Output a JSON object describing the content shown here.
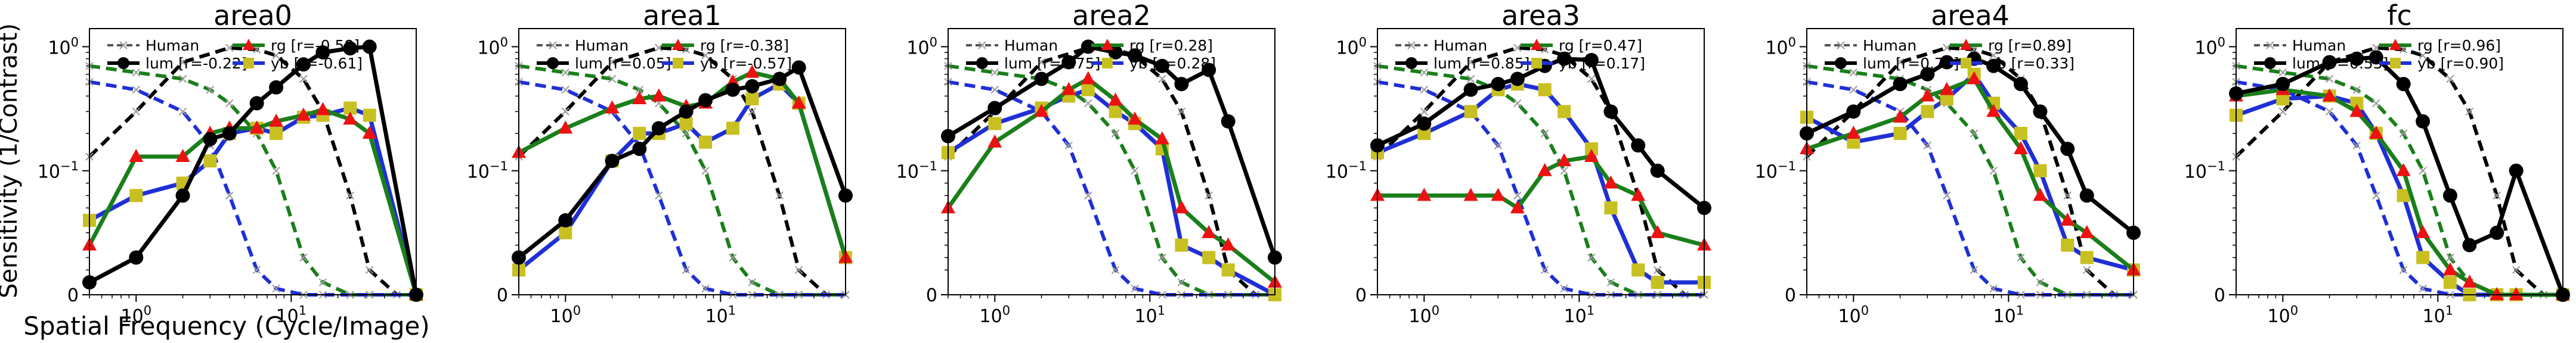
{
  "figure": {
    "ylabel": "Sensitivity (1/Contrast)",
    "xlabel": "Spatial Frequency (Cycle/Image)"
  },
  "legend_labels": {
    "human": "Human",
    "lum": "lum",
    "rg": "rg",
    "yb": "yb"
  },
  "colors": {
    "lum": "#000000",
    "rg": "#1a7f1a",
    "yb": "#1f2fd6",
    "human_lum": "#000000",
    "human_rg": "#1a7f1a",
    "human_yb": "#1f2fd6",
    "rg_marker": "#ee1111",
    "yb_marker": "#c8c020",
    "human_marker": "#999999"
  },
  "chart_data": [
    {
      "type": "line",
      "title": "area0",
      "x_scale": "log",
      "y_scale": "symlog",
      "x_tick_labels": [
        "10^0",
        "10^1"
      ],
      "y_tick_labels": [
        "0",
        "10^-1",
        "10^0"
      ],
      "legend": {
        "lum": "lum [r=-0.22]",
        "rg": "rg    [r=-0.58]",
        "yb": "yb    [r=-0.61]"
      },
      "x": [
        0.5,
        1,
        2,
        3,
        4,
        6,
        8,
        12,
        16,
        24,
        32,
        64
      ],
      "series": [
        {
          "name": "lum",
          "values": [
            0.01,
            0.03,
            0.08,
            0.18,
            0.2,
            0.35,
            0.47,
            0.72,
            0.9,
            0.97,
            1.0,
            0.0
          ]
        },
        {
          "name": "rg",
          "values": [
            0.04,
            0.13,
            0.13,
            0.2,
            0.22,
            0.22,
            0.25,
            0.28,
            0.31,
            0.26,
            0.2,
            0.0
          ]
        },
        {
          "name": "yb",
          "values": [
            0.06,
            0.08,
            0.09,
            0.12,
            0.2,
            0.22,
            0.2,
            0.27,
            0.28,
            0.32,
            0.28,
            0.0
          ]
        }
      ],
      "human": [
        {
          "name": "lum",
          "x": [
            0.5,
            1,
            2,
            4,
            6,
            8,
            12,
            16,
            24,
            32,
            48,
            64
          ],
          "values": [
            0.13,
            0.3,
            0.75,
            0.98,
            0.95,
            0.85,
            0.55,
            0.3,
            0.08,
            0.02,
            0.0,
            0.0
          ]
        },
        {
          "name": "rg",
          "x": [
            0.5,
            1,
            2,
            3,
            4,
            6,
            8,
            12,
            16,
            24,
            32,
            64
          ],
          "values": [
            0.7,
            0.62,
            0.55,
            0.45,
            0.35,
            0.2,
            0.1,
            0.03,
            0.01,
            0.0,
            0.0,
            0.0
          ]
        },
        {
          "name": "yb",
          "x": [
            0.5,
            1,
            2,
            3,
            4,
            6,
            8,
            12,
            16,
            24,
            32,
            64
          ],
          "values": [
            0.52,
            0.45,
            0.3,
            0.16,
            0.08,
            0.02,
            0.005,
            0.0,
            0.0,
            0.0,
            0.0,
            0.0
          ]
        }
      ]
    },
    {
      "type": "line",
      "title": "area1",
      "x_scale": "log",
      "y_scale": "symlog",
      "x_tick_labels": [
        "10^0",
        "10^1"
      ],
      "y_tick_labels": [
        "0",
        "10^-1",
        "10^0"
      ],
      "legend": {
        "lum": "lum [r=0.05]",
        "rg": "rg    [r=-0.38]",
        "yb": "yb    [r=-0.57]"
      },
      "x": [
        0.5,
        1,
        2,
        3,
        4,
        6,
        8,
        12,
        16,
        24,
        32,
        64
      ],
      "series": [
        {
          "name": "lum",
          "values": [
            0.03,
            0.06,
            0.12,
            0.15,
            0.22,
            0.3,
            0.37,
            0.45,
            0.48,
            0.55,
            0.68,
            0.08
          ]
        },
        {
          "name": "rg",
          "values": [
            0.14,
            0.22,
            0.32,
            0.38,
            0.4,
            0.33,
            0.35,
            0.52,
            0.62,
            0.55,
            0.35,
            0.03
          ]
        },
        {
          "name": "yb",
          "values": [
            0.02,
            0.05,
            0.12,
            0.2,
            0.2,
            0.24,
            0.17,
            0.22,
            0.38,
            0.5,
            0.35,
            0.03
          ]
        }
      ],
      "human": [
        {
          "name": "lum",
          "x": [
            0.5,
            1,
            2,
            4,
            6,
            8,
            12,
            16,
            24,
            32,
            48,
            64
          ],
          "values": [
            0.13,
            0.3,
            0.75,
            0.98,
            0.95,
            0.85,
            0.55,
            0.3,
            0.08,
            0.02,
            0.0,
            0.0
          ]
        },
        {
          "name": "rg",
          "x": [
            0.5,
            1,
            2,
            3,
            4,
            6,
            8,
            12,
            16,
            24,
            32,
            64
          ],
          "values": [
            0.7,
            0.62,
            0.55,
            0.45,
            0.35,
            0.2,
            0.1,
            0.03,
            0.01,
            0.0,
            0.0,
            0.0
          ]
        },
        {
          "name": "yb",
          "x": [
            0.5,
            1,
            2,
            3,
            4,
            6,
            8,
            12,
            16,
            24,
            32,
            64
          ],
          "values": [
            0.52,
            0.45,
            0.3,
            0.16,
            0.08,
            0.02,
            0.005,
            0.0,
            0.0,
            0.0,
            0.0,
            0.0
          ]
        }
      ]
    },
    {
      "type": "line",
      "title": "area2",
      "x_scale": "log",
      "y_scale": "symlog",
      "x_tick_labels": [
        "10^0",
        "10^1"
      ],
      "y_tick_labels": [
        "0",
        "10^-1",
        "10^0"
      ],
      "legend": {
        "lum": "lum [r=0.75]",
        "rg": "rg    [r=0.28]",
        "yb": "yb    [r=0.28]"
      },
      "x": [
        0.5,
        1,
        2,
        3,
        4,
        6,
        8,
        12,
        16,
        24,
        32,
        64
      ],
      "series": [
        {
          "name": "lum",
          "values": [
            0.19,
            0.32,
            0.55,
            0.75,
            1.0,
            0.9,
            0.85,
            0.7,
            0.5,
            0.65,
            0.25,
            0.03
          ]
        },
        {
          "name": "rg",
          "values": [
            0.07,
            0.17,
            0.3,
            0.45,
            0.55,
            0.37,
            0.26,
            0.18,
            0.07,
            0.05,
            0.04,
            0.01
          ]
        },
        {
          "name": "yb",
          "values": [
            0.14,
            0.24,
            0.32,
            0.4,
            0.45,
            0.3,
            0.24,
            0.15,
            0.04,
            0.03,
            0.02,
            0.0
          ]
        }
      ],
      "human": [
        {
          "name": "lum",
          "x": [
            0.5,
            1,
            2,
            4,
            6,
            8,
            12,
            16,
            24,
            32,
            48,
            64
          ],
          "values": [
            0.13,
            0.3,
            0.75,
            0.98,
            0.95,
            0.85,
            0.55,
            0.3,
            0.08,
            0.02,
            0.0,
            0.0
          ]
        },
        {
          "name": "rg",
          "x": [
            0.5,
            1,
            2,
            3,
            4,
            6,
            8,
            12,
            16,
            24,
            32,
            64
          ],
          "values": [
            0.7,
            0.62,
            0.55,
            0.45,
            0.35,
            0.2,
            0.1,
            0.03,
            0.01,
            0.0,
            0.0,
            0.0
          ]
        },
        {
          "name": "yb",
          "x": [
            0.5,
            1,
            2,
            3,
            4,
            6,
            8,
            12,
            16,
            24,
            32,
            64
          ],
          "values": [
            0.52,
            0.45,
            0.3,
            0.16,
            0.08,
            0.02,
            0.005,
            0.0,
            0.0,
            0.0,
            0.0,
            0.0
          ]
        }
      ]
    },
    {
      "type": "line",
      "title": "area3",
      "x_scale": "log",
      "y_scale": "symlog",
      "x_tick_labels": [
        "10^0",
        "10^1"
      ],
      "y_tick_labels": [
        "0",
        "10^-1",
        "10^0"
      ],
      "legend": {
        "lum": "lum [r=0.85]",
        "rg": "rg    [r=0.47]",
        "yb": "yb    [r=0.17]"
      },
      "x": [
        0.5,
        1,
        2,
        3,
        4,
        6,
        8,
        12,
        16,
        24,
        32,
        64
      ],
      "series": [
        {
          "name": "lum",
          "values": [
            0.16,
            0.24,
            0.45,
            0.5,
            0.55,
            0.7,
            0.8,
            0.78,
            0.3,
            0.16,
            0.1,
            0.07
          ]
        },
        {
          "name": "rg",
          "values": [
            0.08,
            0.08,
            0.08,
            0.08,
            0.07,
            0.1,
            0.12,
            0.13,
            0.09,
            0.08,
            0.05,
            0.04
          ]
        },
        {
          "name": "yb",
          "values": [
            0.14,
            0.2,
            0.3,
            0.45,
            0.5,
            0.45,
            0.3,
            0.15,
            0.07,
            0.02,
            0.01,
            0.01
          ]
        }
      ],
      "human": [
        {
          "name": "lum",
          "x": [
            0.5,
            1,
            2,
            4,
            6,
            8,
            12,
            16,
            24,
            32,
            48,
            64
          ],
          "values": [
            0.13,
            0.3,
            0.75,
            0.98,
            0.95,
            0.85,
            0.55,
            0.3,
            0.08,
            0.02,
            0.0,
            0.0
          ]
        },
        {
          "name": "rg",
          "x": [
            0.5,
            1,
            2,
            3,
            4,
            6,
            8,
            12,
            16,
            24,
            32,
            64
          ],
          "values": [
            0.7,
            0.62,
            0.55,
            0.45,
            0.35,
            0.2,
            0.1,
            0.03,
            0.01,
            0.0,
            0.0,
            0.0
          ]
        },
        {
          "name": "yb",
          "x": [
            0.5,
            1,
            2,
            3,
            4,
            6,
            8,
            12,
            16,
            24,
            32,
            64
          ],
          "values": [
            0.52,
            0.45,
            0.3,
            0.16,
            0.08,
            0.02,
            0.005,
            0.0,
            0.0,
            0.0,
            0.0,
            0.0
          ]
        }
      ]
    },
    {
      "type": "line",
      "title": "area4",
      "x_scale": "log",
      "y_scale": "symlog",
      "x_tick_labels": [
        "10^0",
        "10^1"
      ],
      "y_tick_labels": [
        "0",
        "10^-1",
        "10^0"
      ],
      "legend": {
        "lum": "lum [r=0.77]",
        "rg": "rg    [r=0.89]",
        "yb": "yb    [r=0.33]"
      },
      "x": [
        0.5,
        1,
        2,
        3,
        4,
        6,
        8,
        12,
        16,
        24,
        32,
        64
      ],
      "series": [
        {
          "name": "lum",
          "values": [
            0.2,
            0.3,
            0.5,
            0.6,
            0.75,
            0.8,
            0.7,
            0.5,
            0.3,
            0.15,
            0.08,
            0.05
          ]
        },
        {
          "name": "rg",
          "values": [
            0.15,
            0.2,
            0.27,
            0.4,
            0.45,
            0.55,
            0.3,
            0.15,
            0.08,
            0.06,
            0.05,
            0.02
          ]
        },
        {
          "name": "yb",
          "values": [
            0.27,
            0.17,
            0.2,
            0.3,
            0.38,
            0.6,
            0.35,
            0.2,
            0.1,
            0.04,
            0.03,
            0.02
          ]
        }
      ],
      "human": [
        {
          "name": "lum",
          "x": [
            0.5,
            1,
            2,
            4,
            6,
            8,
            12,
            16,
            24,
            32,
            48,
            64
          ],
          "values": [
            0.13,
            0.3,
            0.75,
            0.98,
            0.95,
            0.85,
            0.55,
            0.3,
            0.08,
            0.02,
            0.0,
            0.0
          ]
        },
        {
          "name": "rg",
          "x": [
            0.5,
            1,
            2,
            3,
            4,
            6,
            8,
            12,
            16,
            24,
            32,
            64
          ],
          "values": [
            0.7,
            0.62,
            0.55,
            0.45,
            0.35,
            0.2,
            0.1,
            0.03,
            0.01,
            0.0,
            0.0,
            0.0
          ]
        },
        {
          "name": "yb",
          "x": [
            0.5,
            1,
            2,
            3,
            4,
            6,
            8,
            12,
            16,
            24,
            32,
            64
          ],
          "values": [
            0.52,
            0.45,
            0.3,
            0.16,
            0.08,
            0.02,
            0.005,
            0.0,
            0.0,
            0.0,
            0.0,
            0.0
          ]
        }
      ]
    },
    {
      "type": "line",
      "title": "fc",
      "x_scale": "log",
      "y_scale": "symlog",
      "x_tick_labels": [
        "10^0",
        "10^1"
      ],
      "y_tick_labels": [
        "0",
        "10^-1",
        "10^0"
      ],
      "legend": {
        "lum": "lum [r=0.53]",
        "rg": "rg    [r=0.96]",
        "yb": "yb    [r=0.90]"
      },
      "x": [
        0.5,
        1,
        2,
        3,
        4,
        6,
        8,
        12,
        16,
        24,
        32,
        64
      ],
      "series": [
        {
          "name": "lum",
          "values": [
            0.42,
            0.5,
            0.75,
            0.8,
            0.82,
            0.5,
            0.25,
            0.08,
            0.04,
            0.05,
            0.1,
            0.0
          ]
        },
        {
          "name": "rg",
          "values": [
            0.4,
            0.45,
            0.4,
            0.3,
            0.2,
            0.1,
            0.05,
            0.02,
            0.01,
            0.0,
            0.0,
            0.0
          ]
        },
        {
          "name": "yb",
          "values": [
            0.28,
            0.38,
            0.4,
            0.35,
            0.2,
            0.08,
            0.03,
            0.01,
            0.0,
            0.0,
            0.0,
            0.0
          ]
        }
      ],
      "human": [
        {
          "name": "lum",
          "x": [
            0.5,
            1,
            2,
            4,
            6,
            8,
            12,
            16,
            24,
            32,
            48,
            64
          ],
          "values": [
            0.13,
            0.3,
            0.75,
            0.98,
            0.95,
            0.85,
            0.55,
            0.3,
            0.08,
            0.02,
            0.0,
            0.0
          ]
        },
        {
          "name": "rg",
          "x": [
            0.5,
            1,
            2,
            3,
            4,
            6,
            8,
            12,
            16,
            24,
            32,
            64
          ],
          "values": [
            0.7,
            0.62,
            0.55,
            0.45,
            0.35,
            0.2,
            0.1,
            0.03,
            0.01,
            0.0,
            0.0,
            0.0
          ]
        },
        {
          "name": "yb",
          "x": [
            0.5,
            1,
            2,
            3,
            4,
            6,
            8,
            12,
            16,
            24,
            32,
            64
          ],
          "values": [
            0.52,
            0.45,
            0.3,
            0.16,
            0.08,
            0.02,
            0.005,
            0.0,
            0.0,
            0.0,
            0.0,
            0.0
          ]
        }
      ]
    }
  ]
}
